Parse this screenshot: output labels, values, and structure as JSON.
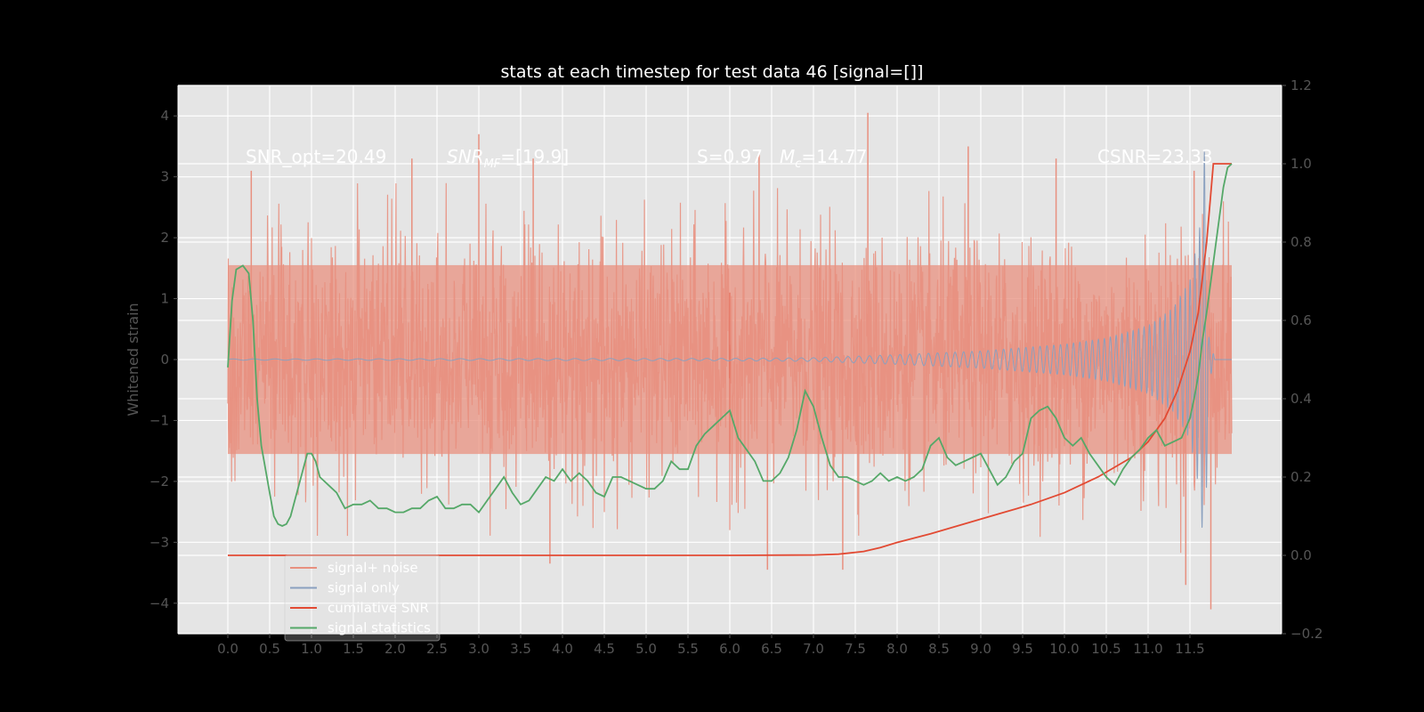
{
  "chart_data": {
    "type": "line",
    "title": "stats at each timestep for test data 46 [signal=[]]",
    "xlabel": "",
    "ylabel": "Whitened strain",
    "y2label": "",
    "xlim": [
      -0.6,
      12.6
    ],
    "ylim": [
      -4.5,
      4.5
    ],
    "y2lim": [
      -0.2,
      1.2
    ],
    "xticks": [
      0.0,
      0.5,
      1.0,
      1.5,
      2.0,
      2.5,
      3.0,
      3.5,
      4.0,
      4.5,
      5.0,
      5.5,
      6.0,
      6.5,
      7.0,
      7.5,
      8.0,
      8.5,
      9.0,
      9.5,
      10.0,
      10.5,
      11.0,
      11.5
    ],
    "xtick_labels": [
      "0.0",
      "0.5",
      "1.0",
      "1.5",
      "2.0",
      "2.5",
      "3.0",
      "3.5",
      "4.0",
      "4.5",
      "5.0",
      "5.5",
      "6.0",
      "6.5",
      "7.0",
      "7.5",
      "8.0",
      "8.5",
      "9.0",
      "9.5",
      "10.0",
      "10.5",
      "11.0",
      "11.5"
    ],
    "yticks": [
      -4,
      -3,
      -2,
      -1,
      0,
      1,
      2,
      3,
      4
    ],
    "ytick_labels": [
      "−4",
      "−3",
      "−2",
      "−1",
      "0",
      "1",
      "2",
      "3",
      "4"
    ],
    "y2ticks": [
      -0.2,
      0.0,
      0.2,
      0.4,
      0.6,
      0.8,
      1.0,
      1.2
    ],
    "y2tick_labels": [
      "−0.2",
      "0.0",
      "0.2",
      "0.4",
      "0.6",
      "0.8",
      "1.0",
      "1.2"
    ],
    "grid": true,
    "legend_position": "lower-left",
    "annotations": {
      "snr_opt": "SNR_opt=20.49",
      "snr_mf": "SNR",
      "snr_mf_sub": "MF",
      "snr_mf_val": "=[19.9]",
      "s_stat": "S=0.97",
      "mc_sym": "M",
      "mc_sub": "c",
      "mc_val": "=14.77",
      "csnr": "CSNR=23.33"
    },
    "series": [
      {
        "name": "signal+ noise",
        "axis": "left",
        "color": "#e8907f",
        "note": "dense noise trace spanning x 0 to 12",
        "envelope_x": [
          0,
          12
        ],
        "envelope_y": [
          -2.2,
          2.2
        ],
        "peak_points": [
          [
            0.28,
            3.1
          ],
          [
            2.2,
            3.3
          ],
          [
            3.0,
            3.7
          ],
          [
            3.65,
            3.3
          ],
          [
            6.35,
            3.4
          ],
          [
            7.65,
            4.05
          ],
          [
            8.85,
            3.5
          ],
          [
            9.9,
            3.3
          ],
          [
            11.55,
            3.1
          ],
          [
            11.75,
            -4.1
          ],
          [
            3.85,
            -3.35
          ],
          [
            6.45,
            -3.45
          ],
          [
            7.35,
            -3.45
          ],
          [
            11.45,
            -3.7
          ]
        ]
      },
      {
        "name": "signal only",
        "axis": "left",
        "color": "#8aa0bf",
        "note": "chirp waveform with amplitude growing toward merger near x 11.7",
        "amplitude_points": [
          [
            0,
            0.01
          ],
          [
            6.0,
            0.02
          ],
          [
            7.0,
            0.03
          ],
          [
            8.0,
            0.08
          ],
          [
            9.0,
            0.14
          ],
          [
            10.0,
            0.25
          ],
          [
            10.5,
            0.35
          ],
          [
            11.0,
            0.55
          ],
          [
            11.3,
            0.85
          ],
          [
            11.5,
            1.3
          ],
          [
            11.62,
            2.2
          ],
          [
            11.68,
            3.6
          ],
          [
            11.72,
            0.4
          ],
          [
            11.8,
            0.0
          ],
          [
            12.0,
            0.0
          ]
        ]
      },
      {
        "name": "cumilative SNR",
        "axis": "right",
        "color": "#e24a33",
        "x": [
          0,
          1,
          2,
          3,
          4,
          5,
          6,
          7,
          7.3,
          7.6,
          7.8,
          8.0,
          8.4,
          8.8,
          9.2,
          9.6,
          10.0,
          10.4,
          10.8,
          11.0,
          11.2,
          11.35,
          11.5,
          11.6,
          11.7,
          11.78,
          12.0
        ],
        "y": [
          0.0,
          0.0,
          0.0,
          0.0,
          0.0,
          0.0,
          0.0,
          0.001,
          0.003,
          0.01,
          0.02,
          0.033,
          0.055,
          0.08,
          0.105,
          0.13,
          0.16,
          0.2,
          0.25,
          0.29,
          0.35,
          0.42,
          0.52,
          0.62,
          0.8,
          1.0,
          1.0
        ]
      },
      {
        "name": "signal statistics",
        "axis": "right",
        "color": "#55a868",
        "x": [
          0,
          0.05,
          0.1,
          0.18,
          0.25,
          0.3,
          0.35,
          0.4,
          0.45,
          0.5,
          0.55,
          0.6,
          0.65,
          0.7,
          0.75,
          0.8,
          0.85,
          0.9,
          0.95,
          1.0,
          1.05,
          1.1,
          1.15,
          1.2,
          1.3,
          1.4,
          1.5,
          1.6,
          1.7,
          1.8,
          1.9,
          2.0,
          2.1,
          2.2,
          2.3,
          2.4,
          2.5,
          2.6,
          2.7,
          2.8,
          2.9,
          3.0,
          3.1,
          3.2,
          3.3,
          3.4,
          3.5,
          3.6,
          3.7,
          3.8,
          3.9,
          4.0,
          4.1,
          4.2,
          4.3,
          4.4,
          4.5,
          4.6,
          4.7,
          4.8,
          4.9,
          5.0,
          5.1,
          5.2,
          5.3,
          5.4,
          5.5,
          5.6,
          5.7,
          5.8,
          5.9,
          6.0,
          6.1,
          6.2,
          6.3,
          6.4,
          6.5,
          6.6,
          6.7,
          6.8,
          6.9,
          7.0,
          7.1,
          7.2,
          7.3,
          7.4,
          7.5,
          7.6,
          7.7,
          7.8,
          7.9,
          8.0,
          8.1,
          8.2,
          8.3,
          8.4,
          8.5,
          8.6,
          8.7,
          8.8,
          8.9,
          9.0,
          9.1,
          9.2,
          9.3,
          9.4,
          9.5,
          9.6,
          9.7,
          9.8,
          9.9,
          10.0,
          10.1,
          10.2,
          10.3,
          10.4,
          10.5,
          10.6,
          10.7,
          10.8,
          10.9,
          11.0,
          11.1,
          11.2,
          11.3,
          11.4,
          11.5,
          11.55,
          11.6,
          11.65,
          11.7,
          11.75,
          11.8,
          11.85,
          11.9,
          11.95,
          12.0
        ],
        "y": [
          0.48,
          0.65,
          0.73,
          0.74,
          0.72,
          0.6,
          0.4,
          0.28,
          0.22,
          0.16,
          0.1,
          0.08,
          0.075,
          0.08,
          0.1,
          0.14,
          0.18,
          0.22,
          0.26,
          0.26,
          0.24,
          0.2,
          0.19,
          0.18,
          0.16,
          0.12,
          0.13,
          0.13,
          0.14,
          0.12,
          0.12,
          0.11,
          0.11,
          0.12,
          0.12,
          0.14,
          0.15,
          0.12,
          0.12,
          0.13,
          0.13,
          0.11,
          0.14,
          0.17,
          0.2,
          0.16,
          0.13,
          0.14,
          0.17,
          0.2,
          0.19,
          0.22,
          0.19,
          0.21,
          0.19,
          0.16,
          0.15,
          0.2,
          0.2,
          0.19,
          0.18,
          0.17,
          0.17,
          0.19,
          0.24,
          0.22,
          0.22,
          0.28,
          0.31,
          0.33,
          0.35,
          0.37,
          0.3,
          0.27,
          0.24,
          0.19,
          0.19,
          0.21,
          0.25,
          0.32,
          0.42,
          0.38,
          0.3,
          0.23,
          0.2,
          0.2,
          0.19,
          0.18,
          0.19,
          0.21,
          0.19,
          0.2,
          0.19,
          0.2,
          0.22,
          0.28,
          0.3,
          0.25,
          0.23,
          0.24,
          0.25,
          0.26,
          0.22,
          0.18,
          0.2,
          0.24,
          0.26,
          0.35,
          0.37,
          0.38,
          0.35,
          0.3,
          0.28,
          0.3,
          0.26,
          0.23,
          0.2,
          0.18,
          0.22,
          0.25,
          0.27,
          0.3,
          0.32,
          0.28,
          0.29,
          0.3,
          0.35,
          0.4,
          0.46,
          0.55,
          0.62,
          0.7,
          0.78,
          0.86,
          0.94,
          0.99,
          1.0
        ]
      }
    ]
  }
}
